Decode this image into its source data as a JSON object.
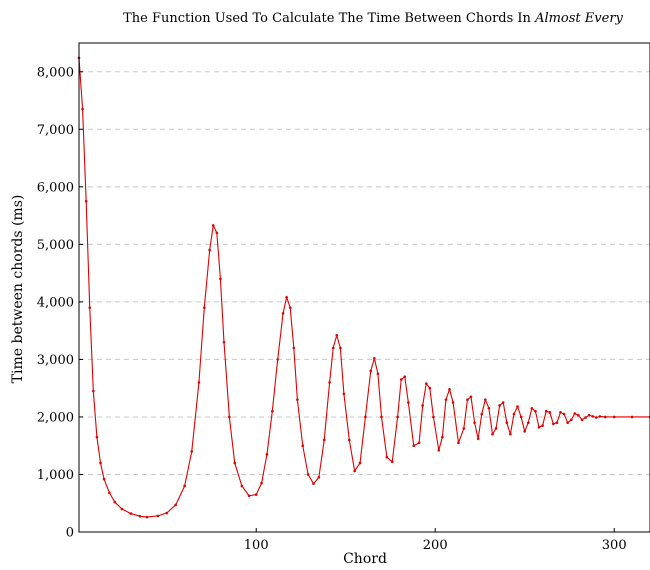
{
  "chart_data": {
    "type": "line",
    "title": {
      "prefix": "The Function Used To Calculate The Time Between Chords In ",
      "emphasis": "Almost Every"
    },
    "xlabel": "Chord",
    "ylabel": "Time between chords (ms)",
    "xlim": [
      1,
      320
    ],
    "ylim": [
      0,
      8500
    ],
    "x_ticks": [
      100,
      200,
      300
    ],
    "y_ticks": [
      0,
      1000,
      2000,
      3000,
      4000,
      5000,
      6000,
      7000,
      8000
    ],
    "y_tick_labels": [
      "0",
      "1,000",
      "2,000",
      "3,000",
      "4,000",
      "5,000",
      "6,000",
      "7,000",
      "8,000"
    ],
    "grid": "horizontal dashed",
    "series": [
      {
        "color": "#e00000",
        "marker": "dot",
        "points": [
          [
            1,
            8240
          ],
          [
            3,
            7350
          ],
          [
            5,
            5750
          ],
          [
            7,
            3900
          ],
          [
            9,
            2450
          ],
          [
            11,
            1650
          ],
          [
            13,
            1200
          ],
          [
            15,
            920
          ],
          [
            18,
            680
          ],
          [
            21,
            520
          ],
          [
            25,
            400
          ],
          [
            30,
            320
          ],
          [
            35,
            275
          ],
          [
            39,
            260
          ],
          [
            45,
            280
          ],
          [
            50,
            330
          ],
          [
            55,
            470
          ],
          [
            60,
            800
          ],
          [
            64,
            1400
          ],
          [
            68,
            2600
          ],
          [
            71,
            3900
          ],
          [
            74,
            4900
          ],
          [
            76,
            5330
          ],
          [
            78,
            5200
          ],
          [
            80,
            4400
          ],
          [
            82,
            3300
          ],
          [
            85,
            2000
          ],
          [
            88,
            1200
          ],
          [
            92,
            800
          ],
          [
            96,
            630
          ],
          [
            100,
            650
          ],
          [
            103,
            850
          ],
          [
            106,
            1350
          ],
          [
            109,
            2100
          ],
          [
            112,
            3000
          ],
          [
            115,
            3800
          ],
          [
            117,
            4080
          ],
          [
            119,
            3900
          ],
          [
            121,
            3200
          ],
          [
            123,
            2300
          ],
          [
            126,
            1500
          ],
          [
            129,
            1000
          ],
          [
            132,
            840
          ],
          [
            135,
            950
          ],
          [
            138,
            1600
          ],
          [
            141,
            2600
          ],
          [
            143,
            3200
          ],
          [
            145,
            3420
          ],
          [
            147,
            3200
          ],
          [
            149,
            2400
          ],
          [
            152,
            1600
          ],
          [
            155,
            1060
          ],
          [
            158,
            1200
          ],
          [
            161,
            2000
          ],
          [
            164,
            2800
          ],
          [
            166,
            3020
          ],
          [
            168,
            2750
          ],
          [
            170,
            2000
          ],
          [
            173,
            1300
          ],
          [
            176,
            1220
          ],
          [
            179,
            2000
          ],
          [
            181,
            2650
          ],
          [
            183,
            2700
          ],
          [
            185,
            2250
          ],
          [
            188,
            1500
          ],
          [
            191,
            1550
          ],
          [
            193,
            2200
          ],
          [
            195,
            2580
          ],
          [
            197,
            2500
          ],
          [
            199,
            2000
          ],
          [
            202,
            1420
          ],
          [
            204,
            1650
          ],
          [
            206,
            2300
          ],
          [
            208,
            2480
          ],
          [
            210,
            2250
          ],
          [
            213,
            1550
          ],
          [
            216,
            1800
          ],
          [
            218,
            2300
          ],
          [
            220,
            2350
          ],
          [
            222,
            1900
          ],
          [
            224,
            1620
          ],
          [
            226,
            2050
          ],
          [
            228,
            2300
          ],
          [
            230,
            2150
          ],
          [
            232,
            1700
          ],
          [
            234,
            1800
          ],
          [
            236,
            2200
          ],
          [
            238,
            2250
          ],
          [
            240,
            1900
          ],
          [
            242,
            1700
          ],
          [
            244,
            2050
          ],
          [
            246,
            2180
          ],
          [
            248,
            2000
          ],
          [
            250,
            1750
          ],
          [
            252,
            1900
          ],
          [
            254,
            2150
          ],
          [
            256,
            2100
          ],
          [
            258,
            1820
          ],
          [
            260,
            1850
          ],
          [
            262,
            2100
          ],
          [
            264,
            2080
          ],
          [
            266,
            1880
          ],
          [
            268,
            1900
          ],
          [
            270,
            2080
          ],
          [
            272,
            2050
          ],
          [
            274,
            1900
          ],
          [
            276,
            1950
          ],
          [
            278,
            2060
          ],
          [
            280,
            2030
          ],
          [
            282,
            1950
          ],
          [
            284,
            1990
          ],
          [
            286,
            2030
          ],
          [
            288,
            2010
          ],
          [
            290,
            1990
          ],
          [
            292,
            2010
          ],
          [
            295,
            2000
          ],
          [
            300,
            2000
          ],
          [
            310,
            2000
          ],
          [
            320,
            2000
          ]
        ]
      }
    ]
  }
}
